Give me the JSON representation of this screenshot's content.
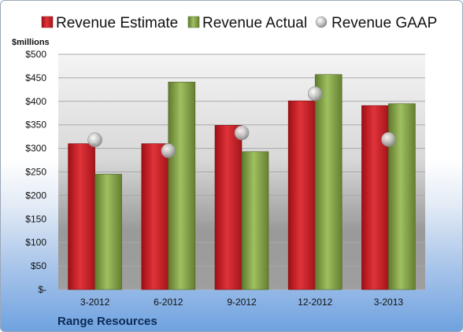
{
  "chart_data": {
    "type": "bar",
    "unit_label": "$millions",
    "company": "Range Resources",
    "categories": [
      "3-2012",
      "6-2012",
      "9-2012",
      "12-2012",
      "3-2013"
    ],
    "ylim": [
      0,
      500
    ],
    "yticks": [
      0,
      50,
      100,
      150,
      200,
      250,
      300,
      350,
      400,
      450,
      500
    ],
    "ytick_labels": [
      "$-",
      "$50",
      "$100",
      "$150",
      "$200",
      "$250",
      "$300",
      "$350",
      "$400",
      "$450",
      "$500"
    ],
    "grid": true,
    "legend_position": "top",
    "series": [
      {
        "name": "Revenue Estimate",
        "kind": "bar",
        "color": "#cc2229",
        "values": [
          310,
          310,
          349,
          401,
          391
        ]
      },
      {
        "name": "Revenue Actual",
        "kind": "bar",
        "color": "#8fae4e",
        "values": [
          245,
          441,
          293,
          457,
          395
        ]
      },
      {
        "name": "Revenue GAAP",
        "kind": "marker",
        "color": "#b8b8b8",
        "values": [
          318,
          295,
          333,
          416,
          319
        ]
      }
    ]
  }
}
